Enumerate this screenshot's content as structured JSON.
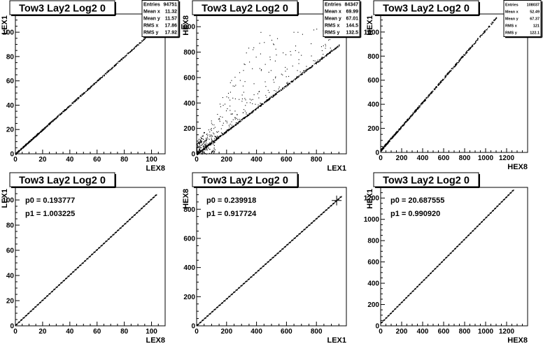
{
  "chart_data": [
    {
      "type": "scatter",
      "title": "Tow3 Lay2 Log2 0",
      "xlabel": "LEX8",
      "ylabel": "LEX1",
      "xlim": [
        0,
        110
      ],
      "ylim": [
        0,
        115
      ],
      "xticks": [
        0,
        20,
        40,
        60,
        80,
        100
      ],
      "yticks": [
        0,
        20,
        40,
        60,
        80,
        100
      ],
      "pattern": "diagonal",
      "line": {
        "slope": 1.0,
        "intercept": 0.2,
        "xmax": 100
      },
      "stats": [
        {
          "label": "Entries",
          "value": "94751"
        },
        {
          "label": "Mean x",
          "value": "11.32"
        },
        {
          "label": "Mean y",
          "value": "11.57"
        },
        {
          "label": "RMS x",
          "value": "17.86"
        },
        {
          "label": "RMS y",
          "value": "17.92"
        }
      ],
      "stats_font": 7
    },
    {
      "type": "scatter",
      "title": "Tow3 Lay2 Log2 0",
      "xlabel": "LEX1",
      "ylabel": "HEX8",
      "xlim": [
        0,
        1000
      ],
      "ylim": [
        0,
        1100
      ],
      "xticks": [
        0,
        200,
        400,
        600,
        800
      ],
      "yticks": [
        0,
        200,
        400,
        600,
        800,
        1000
      ],
      "pattern": "diagonal-scatter",
      "line": {
        "slope": 0.9,
        "intercept": 0,
        "xmax": 950
      },
      "stats": [
        {
          "label": "Entries",
          "value": "84347"
        },
        {
          "label": "Mean x",
          "value": "69.99"
        },
        {
          "label": "Mean y",
          "value": "67.01"
        },
        {
          "label": "RMS x",
          "value": "144.5"
        },
        {
          "label": "RMS y",
          "value": "132.5"
        }
      ],
      "stats_font": 7
    },
    {
      "type": "scatter",
      "title": "Tow3 Lay2 Log2 0",
      "xlabel": "HEX8",
      "ylabel": "HEX1",
      "xlim": [
        0,
        1400
      ],
      "ylim": [
        0,
        1150
      ],
      "xticks": [
        0,
        200,
        400,
        600,
        800,
        1000,
        1200
      ],
      "yticks": [
        0,
        200,
        400,
        600,
        800,
        1000
      ],
      "pattern": "diagonal",
      "line": {
        "slope": 1.0,
        "intercept": 20,
        "xmax": 1100
      },
      "stats": [
        {
          "label": "Entries",
          "value": "108037"
        },
        {
          "label": "Mean x",
          "value": "52.49"
        },
        {
          "label": "Mean y",
          "value": "67.37"
        },
        {
          "label": "RMS x",
          "value": "121"
        },
        {
          "label": "RMS y",
          "value": "122.1"
        }
      ],
      "stats_font": 5.5
    },
    {
      "type": "line",
      "title": "Tow3 Lay2 Log2 0",
      "xlabel": "LEX8",
      "ylabel": "LEX1",
      "xlim": [
        0,
        110
      ],
      "ylim": [
        0,
        110
      ],
      "xticks": [
        0,
        20,
        40,
        60,
        80,
        100
      ],
      "yticks": [
        0,
        20,
        40,
        60,
        80,
        100
      ],
      "pattern": "profile",
      "line": {
        "slope": 1.003225,
        "intercept": 0.193777,
        "xmax": 104
      },
      "fit": [
        {
          "label": "p0 = 0.193777"
        },
        {
          "label": "p1 = 1.003225"
        }
      ]
    },
    {
      "type": "line",
      "title": "Tow3 Lay2 Log2 0",
      "xlabel": "LEX1",
      "ylabel": "HEX8",
      "xlim": [
        0,
        1000
      ],
      "ylim": [
        0,
        950
      ],
      "xticks": [
        0,
        200,
        400,
        600,
        800
      ],
      "yticks": [
        0,
        200,
        400,
        600,
        800
      ],
      "pattern": "profile",
      "line": {
        "slope": 0.917724,
        "intercept": 0.239918,
        "xmax": 970
      },
      "marker": {
        "x": 935,
        "y": 860
      },
      "fit": [
        {
          "label": "p0 = 0.239918"
        },
        {
          "label": "p1 = 0.917724"
        }
      ]
    },
    {
      "type": "line",
      "title": "Tow3 Lay2 Log2 0",
      "xlabel": "HEX8",
      "ylabel": "HEX1",
      "xlim": [
        0,
        1400
      ],
      "ylim": [
        0,
        1300
      ],
      "xticks": [
        0,
        200,
        400,
        600,
        800,
        1000,
        1200
      ],
      "yticks": [
        0,
        200,
        400,
        600,
        800,
        1000,
        1200
      ],
      "pattern": "profile",
      "line": {
        "slope": 0.99092,
        "intercept": 20.687555,
        "xmax": 1270
      },
      "fit": [
        {
          "label": "p0 = 20.687555"
        },
        {
          "label": "p1 = 0.990920"
        }
      ]
    }
  ]
}
